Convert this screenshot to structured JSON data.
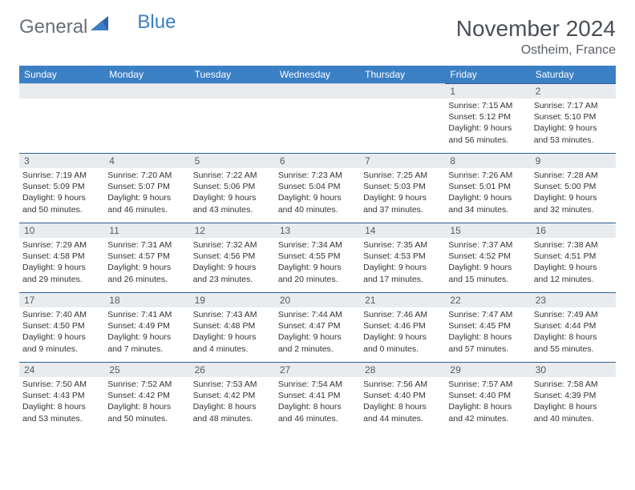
{
  "brand": {
    "part1": "General",
    "part2": "Blue"
  },
  "title": "November 2024",
  "location": "Ostheim, France",
  "colors": {
    "header_bg": "#3b7fc4",
    "header_text": "#ffffff",
    "daynum_bg": "#e9ecef",
    "cell_border": "#2e5e95",
    "text": "#333333"
  },
  "daysOfWeek": [
    "Sunday",
    "Monday",
    "Tuesday",
    "Wednesday",
    "Thursday",
    "Friday",
    "Saturday"
  ],
  "weeks": [
    [
      null,
      null,
      null,
      null,
      null,
      {
        "n": "1",
        "sr": "7:15 AM",
        "ss": "5:12 PM",
        "dl": "9 hours and 56 minutes."
      },
      {
        "n": "2",
        "sr": "7:17 AM",
        "ss": "5:10 PM",
        "dl": "9 hours and 53 minutes."
      }
    ],
    [
      {
        "n": "3",
        "sr": "7:19 AM",
        "ss": "5:09 PM",
        "dl": "9 hours and 50 minutes."
      },
      {
        "n": "4",
        "sr": "7:20 AM",
        "ss": "5:07 PM",
        "dl": "9 hours and 46 minutes."
      },
      {
        "n": "5",
        "sr": "7:22 AM",
        "ss": "5:06 PM",
        "dl": "9 hours and 43 minutes."
      },
      {
        "n": "6",
        "sr": "7:23 AM",
        "ss": "5:04 PM",
        "dl": "9 hours and 40 minutes."
      },
      {
        "n": "7",
        "sr": "7:25 AM",
        "ss": "5:03 PM",
        "dl": "9 hours and 37 minutes."
      },
      {
        "n": "8",
        "sr": "7:26 AM",
        "ss": "5:01 PM",
        "dl": "9 hours and 34 minutes."
      },
      {
        "n": "9",
        "sr": "7:28 AM",
        "ss": "5:00 PM",
        "dl": "9 hours and 32 minutes."
      }
    ],
    [
      {
        "n": "10",
        "sr": "7:29 AM",
        "ss": "4:58 PM",
        "dl": "9 hours and 29 minutes."
      },
      {
        "n": "11",
        "sr": "7:31 AM",
        "ss": "4:57 PM",
        "dl": "9 hours and 26 minutes."
      },
      {
        "n": "12",
        "sr": "7:32 AM",
        "ss": "4:56 PM",
        "dl": "9 hours and 23 minutes."
      },
      {
        "n": "13",
        "sr": "7:34 AM",
        "ss": "4:55 PM",
        "dl": "9 hours and 20 minutes."
      },
      {
        "n": "14",
        "sr": "7:35 AM",
        "ss": "4:53 PM",
        "dl": "9 hours and 17 minutes."
      },
      {
        "n": "15",
        "sr": "7:37 AM",
        "ss": "4:52 PM",
        "dl": "9 hours and 15 minutes."
      },
      {
        "n": "16",
        "sr": "7:38 AM",
        "ss": "4:51 PM",
        "dl": "9 hours and 12 minutes."
      }
    ],
    [
      {
        "n": "17",
        "sr": "7:40 AM",
        "ss": "4:50 PM",
        "dl": "9 hours and 9 minutes."
      },
      {
        "n": "18",
        "sr": "7:41 AM",
        "ss": "4:49 PM",
        "dl": "9 hours and 7 minutes."
      },
      {
        "n": "19",
        "sr": "7:43 AM",
        "ss": "4:48 PM",
        "dl": "9 hours and 4 minutes."
      },
      {
        "n": "20",
        "sr": "7:44 AM",
        "ss": "4:47 PM",
        "dl": "9 hours and 2 minutes."
      },
      {
        "n": "21",
        "sr": "7:46 AM",
        "ss": "4:46 PM",
        "dl": "9 hours and 0 minutes."
      },
      {
        "n": "22",
        "sr": "7:47 AM",
        "ss": "4:45 PM",
        "dl": "8 hours and 57 minutes."
      },
      {
        "n": "23",
        "sr": "7:49 AM",
        "ss": "4:44 PM",
        "dl": "8 hours and 55 minutes."
      }
    ],
    [
      {
        "n": "24",
        "sr": "7:50 AM",
        "ss": "4:43 PM",
        "dl": "8 hours and 53 minutes."
      },
      {
        "n": "25",
        "sr": "7:52 AM",
        "ss": "4:42 PM",
        "dl": "8 hours and 50 minutes."
      },
      {
        "n": "26",
        "sr": "7:53 AM",
        "ss": "4:42 PM",
        "dl": "8 hours and 48 minutes."
      },
      {
        "n": "27",
        "sr": "7:54 AM",
        "ss": "4:41 PM",
        "dl": "8 hours and 46 minutes."
      },
      {
        "n": "28",
        "sr": "7:56 AM",
        "ss": "4:40 PM",
        "dl": "8 hours and 44 minutes."
      },
      {
        "n": "29",
        "sr": "7:57 AM",
        "ss": "4:40 PM",
        "dl": "8 hours and 42 minutes."
      },
      {
        "n": "30",
        "sr": "7:58 AM",
        "ss": "4:39 PM",
        "dl": "8 hours and 40 minutes."
      }
    ]
  ],
  "labels": {
    "sunrise": "Sunrise: ",
    "sunset": "Sunset: ",
    "daylight": "Daylight: "
  }
}
